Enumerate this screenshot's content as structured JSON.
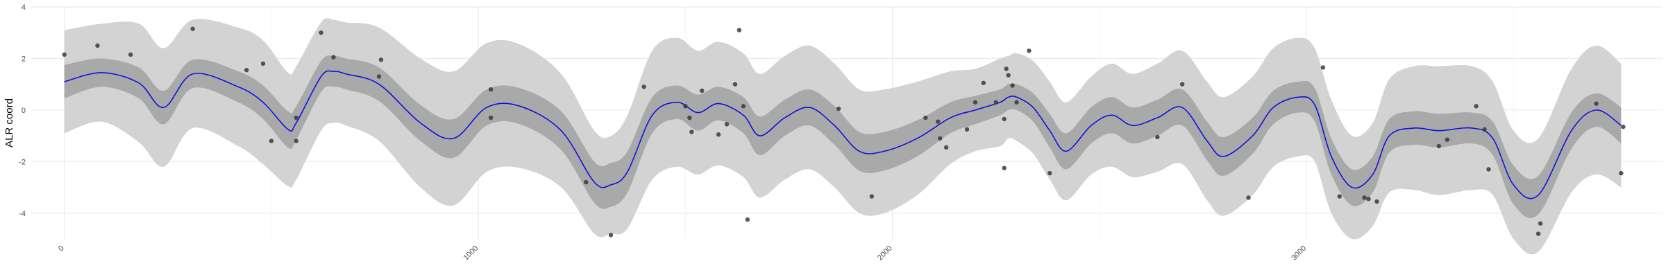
{
  "chart_data": {
    "type": "line",
    "title": "",
    "xlabel": "",
    "ylabel": "ALR coord",
    "xlim": [
      -80,
      3860
    ],
    "ylim": [
      -5,
      4
    ],
    "x_ticks": [
      0,
      1000,
      2000,
      3000
    ],
    "x_tick_labels": [
      "0",
      "1000",
      "2000",
      "3000"
    ],
    "y_ticks": [
      -4,
      -2,
      0,
      2,
      4
    ],
    "y_tick_labels": [
      "-4",
      "-2",
      "0",
      "2",
      "4"
    ],
    "grid": true,
    "x_tick_rotation_deg": 45,
    "mean": {
      "x": [
        0,
        90,
        180,
        240,
        310,
        420,
        480,
        540,
        560,
        620,
        650,
        680,
        760,
        860,
        940,
        1020,
        1100,
        1200,
        1280,
        1320,
        1360,
        1420,
        1480,
        1530,
        1580,
        1640,
        1680,
        1740,
        1800,
        1860,
        1920,
        1980,
        2060,
        2140,
        2200,
        2260,
        2280,
        2300,
        2340,
        2380,
        2420,
        2480,
        2530,
        2580,
        2640,
        2700,
        2760,
        2800,
        2870,
        2920,
        2980,
        3020,
        3060,
        3110,
        3160,
        3200,
        3260,
        3320,
        3400,
        3450,
        3500,
        3560,
        3640,
        3700,
        3760
      ],
      "y": [
        1.1,
        1.45,
        1.05,
        0.1,
        1.4,
        0.9,
        0.3,
        -0.75,
        -0.5,
        1.3,
        1.5,
        1.4,
        1.0,
        -0.5,
        -1.1,
        0.1,
        0.15,
        -0.8,
        -2.8,
        -2.9,
        -2.4,
        -0.2,
        0.3,
        -0.1,
        0.25,
        -0.2,
        -1.0,
        -0.3,
        0.1,
        -0.6,
        -1.6,
        -1.6,
        -1.1,
        -0.3,
        0.0,
        0.3,
        0.5,
        0.5,
        0.1,
        -0.8,
        -1.6,
        -0.6,
        -0.2,
        -0.6,
        -0.3,
        0.1,
        -1.2,
        -1.8,
        -1.0,
        0.1,
        0.5,
        0.2,
        -1.8,
        -3.0,
        -2.5,
        -1.0,
        -0.7,
        -0.8,
        -0.7,
        -1.1,
        -2.9,
        -3.3,
        -0.8,
        0.0,
        -0.6
      ]
    },
    "band_inner_half_width": [
      0.65,
      0.55,
      0.6,
      0.65,
      0.55,
      0.6,
      0.65,
      0.7,
      0.65,
      0.6,
      0.6,
      0.6,
      0.65,
      0.7,
      0.75,
      0.7,
      0.7,
      0.75,
      0.8,
      0.85,
      0.8,
      0.7,
      0.65,
      0.7,
      0.65,
      0.7,
      0.75,
      0.7,
      0.7,
      0.75,
      0.75,
      0.75,
      0.7,
      0.6,
      0.55,
      0.5,
      0.5,
      0.5,
      0.55,
      0.65,
      0.7,
      0.7,
      0.7,
      0.7,
      0.7,
      0.7,
      0.75,
      0.75,
      0.7,
      0.65,
      0.6,
      0.65,
      0.7,
      0.7,
      0.7,
      0.65,
      0.65,
      0.65,
      0.6,
      0.65,
      0.75,
      0.75,
      0.7,
      0.65,
      0.7
    ],
    "band_outer_half_width": [
      2.0,
      1.9,
      2.3,
      2.3,
      2.1,
      2.3,
      2.4,
      2.2,
      2.2,
      2.1,
      2.0,
      2.0,
      2.2,
      2.5,
      2.6,
      2.5,
      2.4,
      2.2,
      2.0,
      1.9,
      2.2,
      2.5,
      2.5,
      2.4,
      2.4,
      2.4,
      2.4,
      2.4,
      2.4,
      2.4,
      2.4,
      2.4,
      2.2,
      1.8,
      1.6,
      1.7,
      1.6,
      1.7,
      1.8,
      1.9,
      1.9,
      1.9,
      2.0,
      2.0,
      2.1,
      2.2,
      2.3,
      2.3,
      2.3,
      2.3,
      2.3,
      2.2,
      2.2,
      2.0,
      2.0,
      2.2,
      2.4,
      2.5,
      2.4,
      2.2,
      2.1,
      2.2,
      2.4,
      2.5,
      2.4
    ],
    "points": [
      {
        "x": 0,
        "y": 2.15
      },
      {
        "x": 80,
        "y": 2.5
      },
      {
        "x": 160,
        "y": 2.15
      },
      {
        "x": 310,
        "y": 3.15
      },
      {
        "x": 440,
        "y": 1.55
      },
      {
        "x": 480,
        "y": 1.8
      },
      {
        "x": 500,
        "y": -1.2
      },
      {
        "x": 560,
        "y": -1.2
      },
      {
        "x": 560,
        "y": -0.3
      },
      {
        "x": 620,
        "y": 3.0
      },
      {
        "x": 650,
        "y": 2.05
      },
      {
        "x": 760,
        "y": 1.3
      },
      {
        "x": 765,
        "y": 1.95
      },
      {
        "x": 1030,
        "y": -0.3
      },
      {
        "x": 1030,
        "y": 0.8
      },
      {
        "x": 1260,
        "y": -2.8
      },
      {
        "x": 1320,
        "y": -4.85
      },
      {
        "x": 1400,
        "y": 0.9
      },
      {
        "x": 1500,
        "y": 0.15
      },
      {
        "x": 1510,
        "y": -0.3
      },
      {
        "x": 1515,
        "y": -0.85
      },
      {
        "x": 1540,
        "y": 0.75
      },
      {
        "x": 1580,
        "y": -0.95
      },
      {
        "x": 1600,
        "y": -0.55
      },
      {
        "x": 1620,
        "y": 1.0
      },
      {
        "x": 1630,
        "y": 3.1
      },
      {
        "x": 1640,
        "y": 0.15
      },
      {
        "x": 1650,
        "y": -4.25
      },
      {
        "x": 1870,
        "y": 0.05
      },
      {
        "x": 1950,
        "y": -3.35
      },
      {
        "x": 2080,
        "y": -0.3
      },
      {
        "x": 2110,
        "y": -0.45
      },
      {
        "x": 2115,
        "y": -1.1
      },
      {
        "x": 2130,
        "y": -1.45
      },
      {
        "x": 2180,
        "y": -0.75
      },
      {
        "x": 2200,
        "y": 0.3
      },
      {
        "x": 2220,
        "y": 1.05
      },
      {
        "x": 2250,
        "y": 0.3
      },
      {
        "x": 2270,
        "y": -0.35
      },
      {
        "x": 2275,
        "y": 1.6
      },
      {
        "x": 2280,
        "y": 1.35
      },
      {
        "x": 2290,
        "y": 0.95
      },
      {
        "x": 2300,
        "y": 0.3
      },
      {
        "x": 2270,
        "y": -2.25
      },
      {
        "x": 2330,
        "y": 2.3
      },
      {
        "x": 2380,
        "y": -2.45
      },
      {
        "x": 2640,
        "y": -1.05
      },
      {
        "x": 2700,
        "y": 1.0
      },
      {
        "x": 2860,
        "y": -3.4
      },
      {
        "x": 3040,
        "y": 1.65
      },
      {
        "x": 3080,
        "y": -3.35
      },
      {
        "x": 3140,
        "y": -3.4
      },
      {
        "x": 3150,
        "y": -3.45
      },
      {
        "x": 3170,
        "y": -3.55
      },
      {
        "x": 3320,
        "y": -1.4
      },
      {
        "x": 3340,
        "y": -1.15
      },
      {
        "x": 3410,
        "y": 0.15
      },
      {
        "x": 3430,
        "y": -0.75
      },
      {
        "x": 3440,
        "y": -2.3
      },
      {
        "x": 3560,
        "y": -4.8
      },
      {
        "x": 3565,
        "y": -4.4
      },
      {
        "x": 3700,
        "y": 0.25
      },
      {
        "x": 3760,
        "y": -2.45
      },
      {
        "x": 3765,
        "y": -0.65
      }
    ],
    "colors": {
      "line": "#1010e0",
      "band_outer": "#d3d3d3",
      "band_inner": "#a9a9a9",
      "points": "#3a3a3a",
      "grid": "#ebebeb",
      "tick_text": "#4d4d4d"
    }
  }
}
